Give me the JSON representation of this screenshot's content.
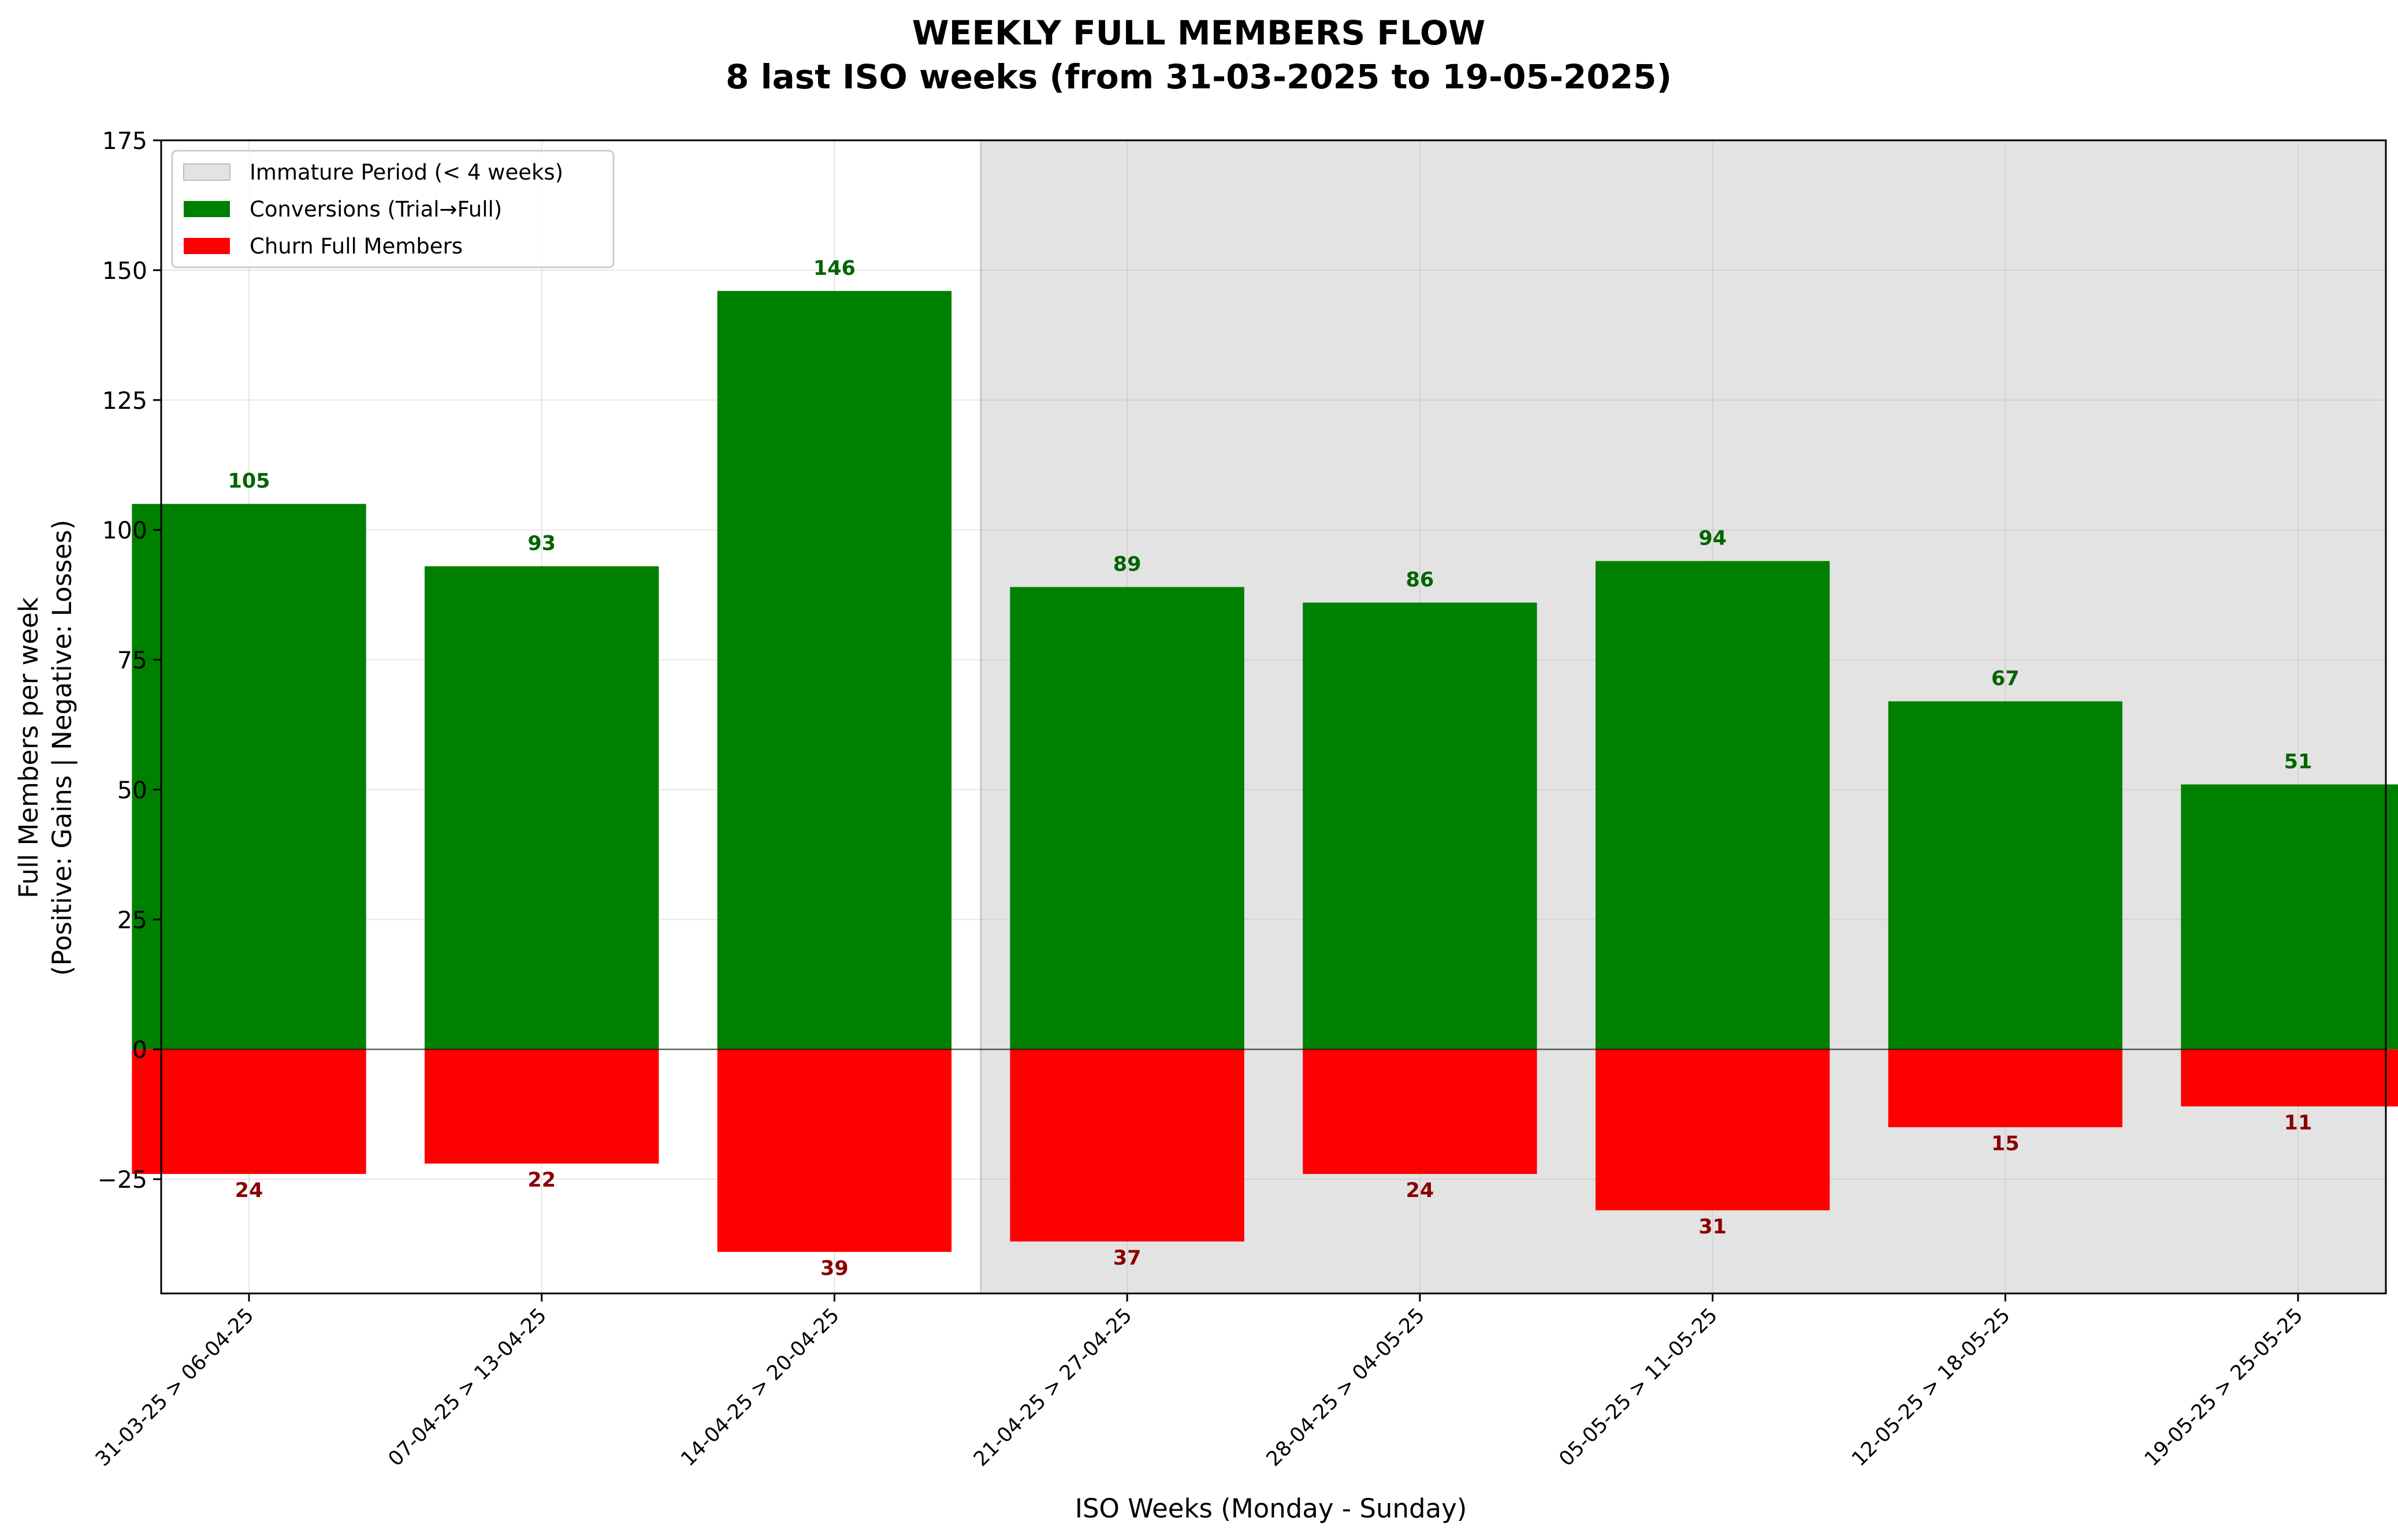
{
  "chart_data": {
    "type": "bar",
    "title": "WEEKLY FULL MEMBERS FLOW",
    "subtitle": "8 last ISO weeks (from 31-03-2025 to 19-05-2025)",
    "xlabel": "ISO Weeks (Monday - Sunday)",
    "ylabel": "Full Members per week",
    "ylabel2": "(Positive: Gains | Negative: Losses)",
    "categories": [
      "31-03-25 > 06-04-25",
      "07-04-25 > 13-04-25",
      "14-04-25 > 20-04-25",
      "21-04-25 > 27-04-25",
      "28-04-25 > 04-05-25",
      "05-05-25 > 11-05-25",
      "12-05-25 > 18-05-25",
      "19-05-25 > 25-05-25"
    ],
    "series": [
      {
        "name": "Conversions (Trial→Full)",
        "color": "#008000",
        "label_color": "#006400",
        "values": [
          105,
          93,
          146,
          89,
          86,
          94,
          67,
          51
        ]
      },
      {
        "name": "Churn Full Members",
        "color": "#ff0000",
        "label_color": "#8b0000",
        "values": [
          -24,
          -22,
          -39,
          -37,
          -24,
          -31,
          -15,
          -11
        ],
        "labels": [
          "24",
          "22",
          "39",
          "37",
          "24",
          "31",
          "15",
          "11"
        ]
      }
    ],
    "immature_period": {
      "label": "Immature Period (< 4 weeks)",
      "color": "#e3e3e3",
      "from_category_index": 3
    },
    "ylim": [
      -47,
      175
    ],
    "yticks": [
      -25,
      0,
      25,
      50,
      75,
      100,
      125,
      150,
      175
    ],
    "ytick_labels": [
      "−25",
      "0",
      "25",
      "50",
      "75",
      "100",
      "125",
      "150",
      "175"
    ],
    "grid": true,
    "legend_position": "top-left"
  }
}
